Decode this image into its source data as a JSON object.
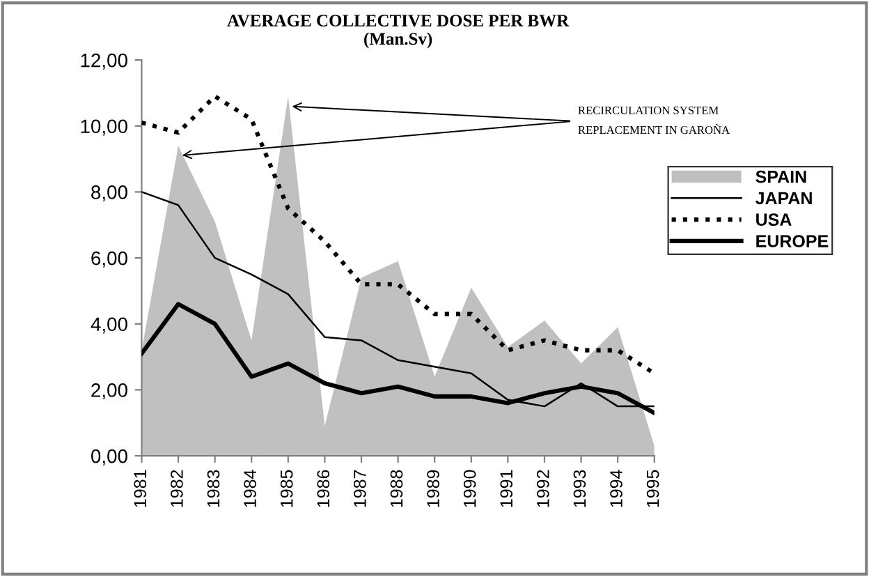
{
  "chart_data": {
    "type": "line",
    "title": "AVERAGE COLLECTIVE DOSE PER BWR\n(Man.Sv)",
    "categories": [
      "1981",
      "1982",
      "1983",
      "1984",
      "1985",
      "1986",
      "1987",
      "1988",
      "1989",
      "1990",
      "1991",
      "1992",
      "1993",
      "1994",
      "1995"
    ],
    "series": [
      {
        "name": "SPAIN",
        "type": "area",
        "color": "#c0c0c0",
        "values": [
          3.2,
          9.4,
          7.1,
          3.5,
          10.9,
          0.9,
          5.4,
          5.9,
          2.4,
          5.1,
          3.3,
          4.1,
          2.8,
          3.9,
          0.3
        ]
      },
      {
        "name": "JAPAN",
        "color": "#000000",
        "line_style": "solid",
        "values": [
          8.0,
          7.6,
          6.0,
          5.5,
          4.9,
          3.6,
          3.5,
          2.9,
          2.7,
          2.5,
          1.7,
          1.5,
          2.2,
          1.5,
          1.5
        ]
      },
      {
        "name": "USA",
        "color": "#000000",
        "line_style": "dotted",
        "values": [
          10.1,
          9.8,
          10.9,
          10.2,
          7.5,
          6.5,
          5.2,
          5.2,
          4.3,
          4.3,
          3.2,
          3.5,
          3.2,
          3.2,
          2.5
        ]
      },
      {
        "name": "EUROPE",
        "color": "#000000",
        "line_style": "solid",
        "values": [
          3.1,
          4.6,
          4.0,
          2.4,
          2.8,
          2.2,
          1.9,
          2.1,
          1.8,
          1.8,
          1.6,
          1.9,
          2.1,
          1.9,
          1.3
        ]
      }
    ],
    "ylim": [
      0,
      12
    ],
    "yticks": [
      {
        "value": 0,
        "label": "0,00"
      },
      {
        "value": 2,
        "label": "2,00"
      },
      {
        "value": 4,
        "label": "4,00"
      },
      {
        "value": 6,
        "label": "6,00"
      },
      {
        "value": 8,
        "label": "8,00"
      },
      {
        "value": 10,
        "label": "10,00"
      },
      {
        "value": 12,
        "label": "12,00"
      }
    ],
    "annotations": [
      {
        "text": "RECIRCULATION SYSTEM",
        "x": "1985",
        "y": 10.6
      },
      {
        "text": "REPLACEMENT IN GAROÑA",
        "x": "1982",
        "y": 9.1
      }
    ],
    "legend": "right",
    "grid": false
  }
}
